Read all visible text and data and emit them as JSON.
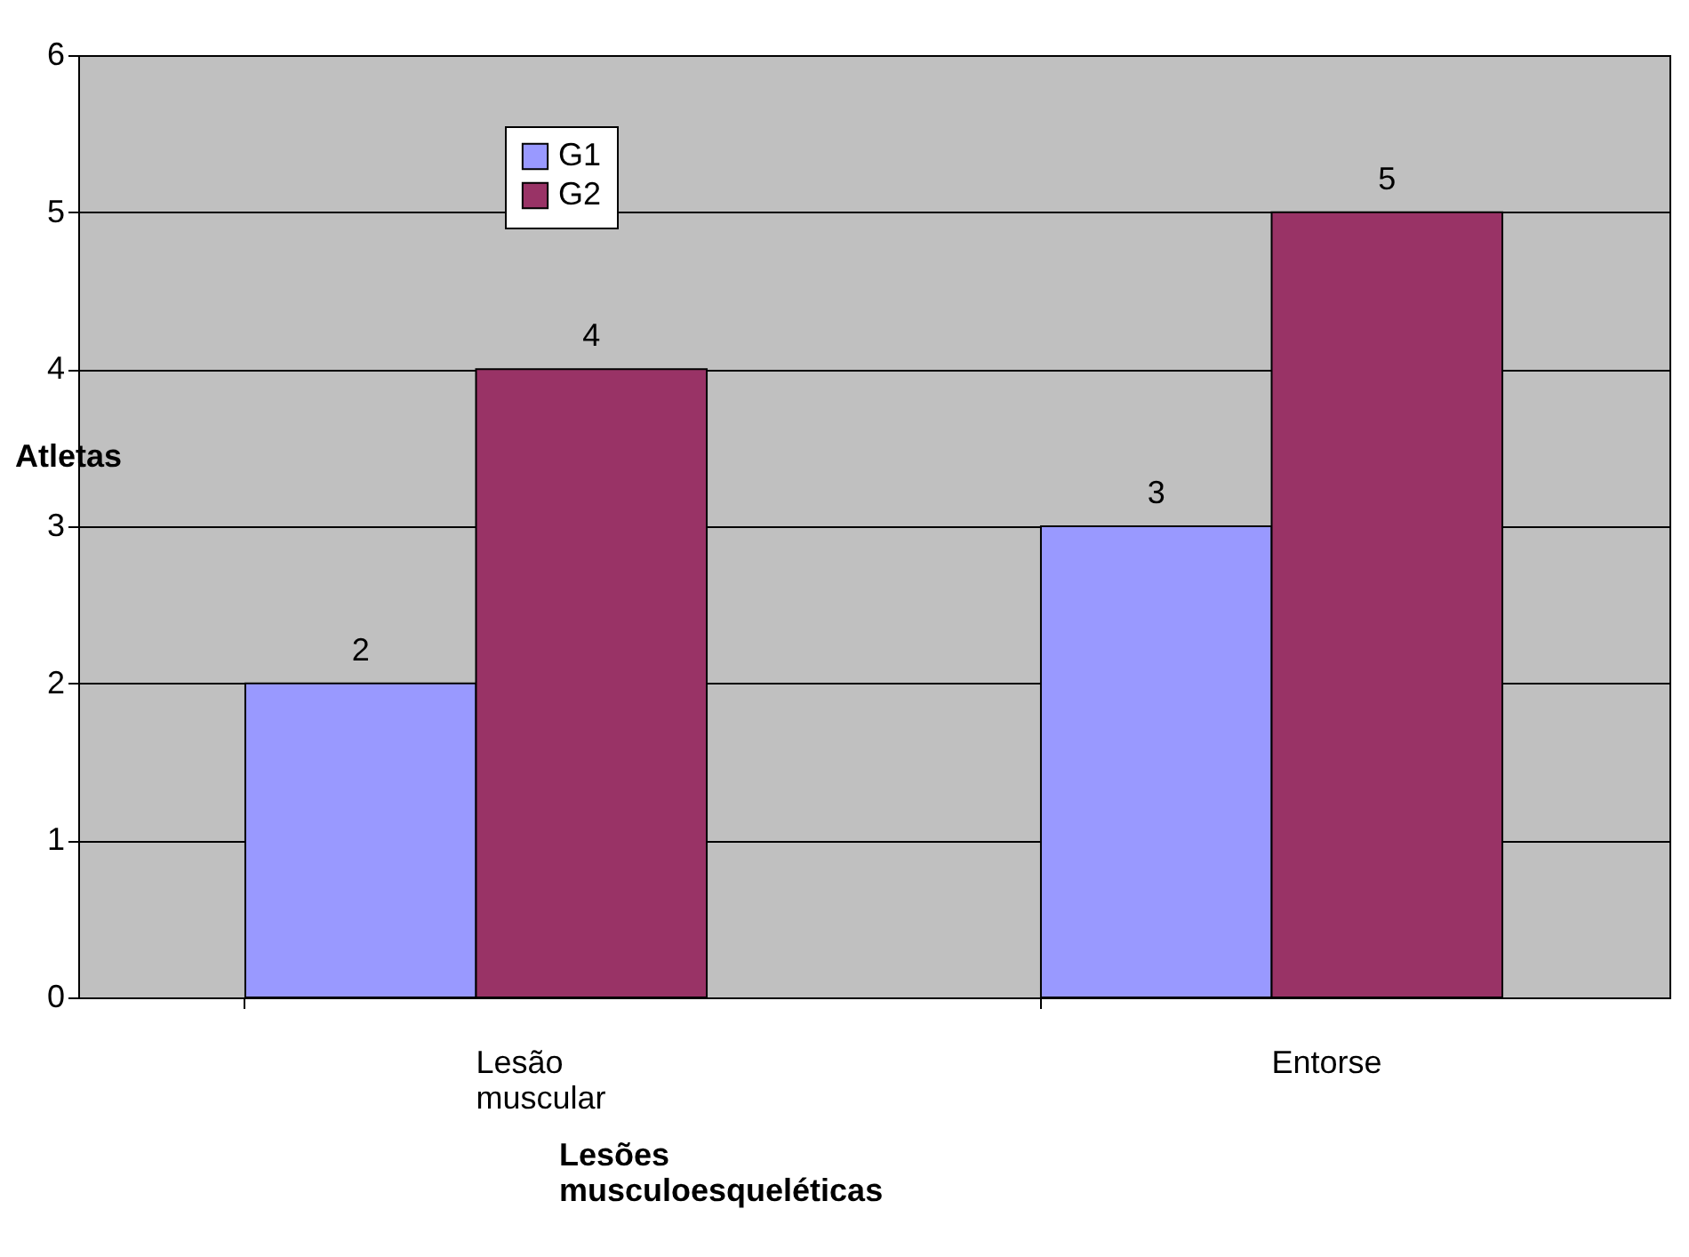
{
  "chart_data": {
    "type": "bar",
    "xlabel": "Lesões musculoesqueléticas",
    "ylabel": "Atletas",
    "categories": [
      "Lesão muscular",
      "Entorse"
    ],
    "series": [
      {
        "name": "G1",
        "color": "#9999ff",
        "values": [
          2,
          3
        ]
      },
      {
        "name": "G2",
        "color": "#993366",
        "values": [
          4,
          5
        ]
      }
    ],
    "ylim": [
      0,
      6
    ],
    "yticks": [
      0,
      1,
      2,
      3,
      4,
      5,
      6
    ],
    "grid": "y",
    "legend": "top left",
    "data_labels": true
  }
}
